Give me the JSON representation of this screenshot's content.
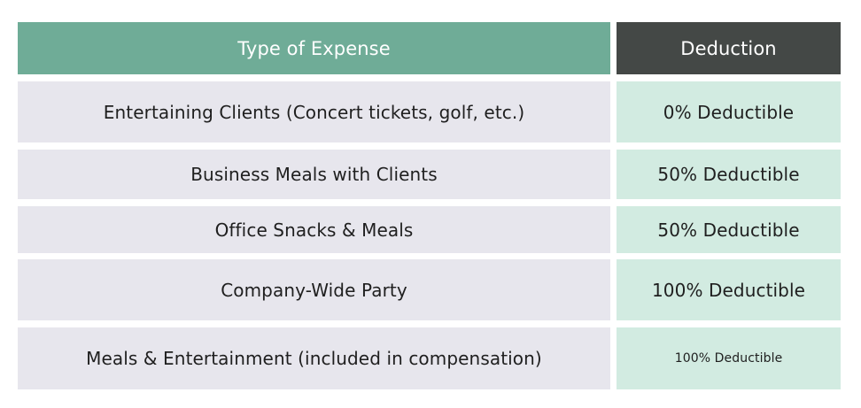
{
  "table": {
    "headers": {
      "type_of_expense": "Type of Expense",
      "deduction": "Deduction"
    },
    "rows": [
      {
        "expense": "Entertaining Clients (Concert tickets, golf, etc.)",
        "deduction": "0% Deductible"
      },
      {
        "expense": "Business Meals with Clients",
        "deduction": "50% Deductible"
      },
      {
        "expense": "Office Snacks & Meals",
        "deduction": "50% Deductible"
      },
      {
        "expense": "Company-Wide Party",
        "deduction": "100% Deductible"
      },
      {
        "expense": "Meals & Entertainment (included in compensation)",
        "deduction": "100% Deductible"
      }
    ]
  },
  "colors": {
    "header_type_bg": "#6fac97",
    "header_deduction_bg": "#444846",
    "expense_cell_bg": "#e7e6ed",
    "deduction_cell_bg": "#d2ebe1"
  }
}
